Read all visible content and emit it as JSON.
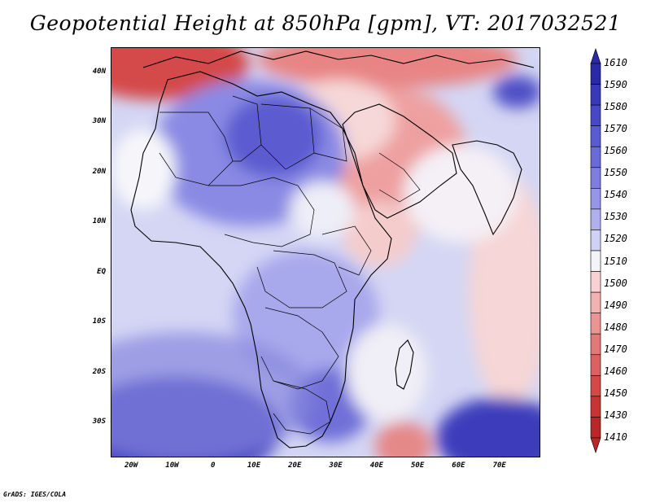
{
  "title": "Geopotential Height at 850hPa [gpm], VT: 2017032521",
  "credit": "GrADS: IGES/COLA",
  "map": {
    "region": "Africa, Arabian Peninsula and western Indian Ocean",
    "lon_range": [
      -25,
      80
    ],
    "lat_range": [
      -37,
      45
    ],
    "lat_labels": [
      {
        "lat": 40,
        "text": "40N"
      },
      {
        "lat": 30,
        "text": "30N"
      },
      {
        "lat": 20,
        "text": "20N"
      },
      {
        "lat": 10,
        "text": "10N"
      },
      {
        "lat": 0,
        "text": "EQ"
      },
      {
        "lat": -10,
        "text": "10S"
      },
      {
        "lat": -20,
        "text": "20S"
      },
      {
        "lat": -30,
        "text": "30S"
      }
    ],
    "lon_labels": [
      {
        "lon": -20,
        "text": "20W"
      },
      {
        "lon": -10,
        "text": "10W"
      },
      {
        "lon": 0,
        "text": "0"
      },
      {
        "lon": 10,
        "text": "10E"
      },
      {
        "lon": 20,
        "text": "20E"
      },
      {
        "lon": 30,
        "text": "30E"
      },
      {
        "lon": 40,
        "text": "40E"
      },
      {
        "lon": 50,
        "text": "50E"
      },
      {
        "lon": 60,
        "text": "60E"
      },
      {
        "lon": 70,
        "text": "70E"
      }
    ]
  },
  "legend": {
    "labels": [
      "1610",
      "1590",
      "1580",
      "1570",
      "1560",
      "1550",
      "1540",
      "1530",
      "1520",
      "1510",
      "1500",
      "1490",
      "1480",
      "1470",
      "1460",
      "1450",
      "1430",
      "1410"
    ],
    "colors": [
      "#2a2aa8",
      "#3838b8",
      "#4848c6",
      "#5a5ad2",
      "#6a6ad8",
      "#7e7ee0",
      "#9696e8",
      "#b0b0ef",
      "#cfd2f4",
      "#f4f4f8",
      "#f8d2d2",
      "#f2b2b2",
      "#ea9494",
      "#e27878",
      "#dc6262",
      "#d44848",
      "#c83434",
      "#b82828"
    ]
  }
}
